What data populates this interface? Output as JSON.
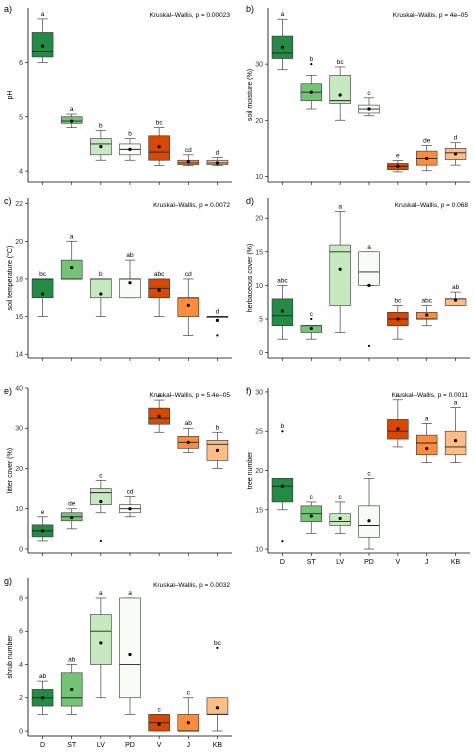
{
  "colors": {
    "D": "#238b45",
    "ST": "#74c476",
    "LV": "#c7e9c0",
    "PD": "#f7fcf5",
    "V": "#d94801",
    "J": "#fd8d3c",
    "KB": "#fdbe85"
  },
  "chart_data": [
    {
      "type": "box",
      "label": "a)",
      "stat": "Kruskal–Wallis, p = 0.00023",
      "ylabel": "pH",
      "ylim": [
        3.8,
        7.0
      ],
      "yticks": [
        4,
        5,
        6
      ],
      "categories": [
        "D",
        "ST",
        "LV",
        "PD",
        "V",
        "J",
        "KB"
      ],
      "show_xlabels": false,
      "boxes": [
        {
          "cat": "D",
          "min": 6.0,
          "q1": 6.1,
          "med": 6.2,
          "q3": 6.55,
          "max": 6.8,
          "mean": 6.3,
          "letter": "a",
          "outliers": []
        },
        {
          "cat": "ST",
          "min": 4.8,
          "q1": 4.88,
          "med": 4.92,
          "q3": 5.0,
          "max": 5.05,
          "mean": 4.92,
          "letter": "a",
          "outliers": []
        },
        {
          "cat": "LV",
          "min": 4.2,
          "q1": 4.3,
          "med": 4.5,
          "q3": 4.6,
          "max": 4.75,
          "mean": 4.45,
          "letter": "b",
          "outliers": []
        },
        {
          "cat": "PD",
          "min": 4.2,
          "q1": 4.3,
          "med": 4.4,
          "q3": 4.5,
          "max": 4.6,
          "mean": 4.4,
          "letter": "b",
          "outliers": []
        },
        {
          "cat": "V",
          "min": 4.1,
          "q1": 4.2,
          "med": 4.35,
          "q3": 4.65,
          "max": 4.8,
          "mean": 4.45,
          "letter": "bc",
          "outliers": []
        },
        {
          "cat": "J",
          "min": 4.1,
          "q1": 4.12,
          "med": 4.15,
          "q3": 4.2,
          "max": 4.3,
          "mean": 4.17,
          "letter": "cd",
          "outliers": []
        },
        {
          "cat": "KB",
          "min": 4.1,
          "q1": 4.12,
          "med": 4.15,
          "q3": 4.2,
          "max": 4.25,
          "mean": 4.15,
          "letter": "d",
          "outliers": []
        }
      ]
    },
    {
      "type": "box",
      "label": "b)",
      "stat": "Kruskal–Wallis, p = 4e–05",
      "ylabel": "soil moisture (%)",
      "ylim": [
        9,
        40
      ],
      "yticks": [
        10,
        20,
        30
      ],
      "categories": [
        "D",
        "ST",
        "LV",
        "PD",
        "V",
        "J",
        "KB"
      ],
      "show_xlabels": false,
      "boxes": [
        {
          "cat": "D",
          "min": 29,
          "q1": 31,
          "med": 32,
          "q3": 35,
          "max": 38,
          "mean": 33,
          "letter": "a",
          "outliers": []
        },
        {
          "cat": "ST",
          "min": 22,
          "q1": 23.5,
          "med": 25,
          "q3": 26.5,
          "max": 28,
          "mean": 25,
          "letter": "b",
          "outliers": [
            30
          ]
        },
        {
          "cat": "LV",
          "min": 20,
          "q1": 23,
          "med": 23.5,
          "q3": 28,
          "max": 29.5,
          "mean": 24.5,
          "letter": "bc",
          "outliers": []
        },
        {
          "cat": "PD",
          "min": 20.8,
          "q1": 21.3,
          "med": 22,
          "q3": 22.7,
          "max": 24,
          "mean": 22,
          "letter": "c",
          "outliers": []
        },
        {
          "cat": "V",
          "min": 10.8,
          "q1": 11.2,
          "med": 11.8,
          "q3": 12.3,
          "max": 12.8,
          "mean": 11.8,
          "letter": "e",
          "outliers": []
        },
        {
          "cat": "J",
          "min": 11,
          "q1": 12,
          "med": 13.2,
          "q3": 14.5,
          "max": 15.5,
          "mean": 13.2,
          "letter": "de",
          "outliers": []
        },
        {
          "cat": "KB",
          "min": 12,
          "q1": 13,
          "med": 14.2,
          "q3": 15,
          "max": 16,
          "mean": 14,
          "letter": "d",
          "outliers": []
        }
      ]
    },
    {
      "type": "box",
      "label": "c)",
      "stat": "Kruskal–Wallis, p = 0.0072",
      "ylabel": "soil temperature (°C)",
      "ylim": [
        13.8,
        22.3
      ],
      "yticks": [
        14,
        16,
        18,
        20,
        22
      ],
      "categories": [
        "D",
        "ST",
        "LV",
        "PD",
        "V",
        "J",
        "KB"
      ],
      "show_xlabels": false,
      "boxes": [
        {
          "cat": "D",
          "min": 16,
          "q1": 17,
          "med": 18,
          "q3": 18,
          "max": 18,
          "mean": 17.2,
          "letter": "bc",
          "outliers": []
        },
        {
          "cat": "ST",
          "min": 18,
          "q1": 18,
          "med": 18,
          "q3": 19,
          "max": 20,
          "mean": 18.6,
          "letter": "a",
          "outliers": []
        },
        {
          "cat": "LV",
          "min": 16,
          "q1": 17,
          "med": 18,
          "q3": 18,
          "max": 18,
          "mean": 17.2,
          "letter": "b",
          "outliers": []
        },
        {
          "cat": "PD",
          "min": 17,
          "q1": 17,
          "med": 18,
          "q3": 18,
          "max": 19,
          "mean": 17.8,
          "letter": "ab",
          "outliers": []
        },
        {
          "cat": "V",
          "min": 16,
          "q1": 17,
          "med": 17.5,
          "q3": 18,
          "max": 18,
          "mean": 17.4,
          "letter": "abc",
          "outliers": []
        },
        {
          "cat": "J",
          "min": 15,
          "q1": 16,
          "med": 17,
          "q3": 17,
          "max": 18,
          "mean": 16.6,
          "letter": "cd",
          "outliers": []
        },
        {
          "cat": "KB",
          "min": 16,
          "q1": 16,
          "med": 16,
          "q3": 16,
          "max": 16,
          "mean": 15.8,
          "letter": "d",
          "outliers": [
            15
          ]
        }
      ]
    },
    {
      "type": "box",
      "label": "d)",
      "stat": "Kruskal–Wallis, p = 0.068",
      "ylabel": "herbaceous cover (%)",
      "ylim": [
        -0.8,
        23
      ],
      "yticks": [
        0,
        5,
        10,
        15,
        20
      ],
      "categories": [
        "D",
        "ST",
        "LV",
        "PD",
        "V",
        "J",
        "KB"
      ],
      "show_xlabels": false,
      "boxes": [
        {
          "cat": "D",
          "min": 2,
          "q1": 4,
          "med": 5.5,
          "q3": 8,
          "max": 10,
          "mean": 6.2,
          "letter": "abc",
          "outliers": []
        },
        {
          "cat": "ST",
          "min": 2,
          "q1": 3,
          "med": 4,
          "q3": 4,
          "max": 4,
          "mean": 3.6,
          "letter": "c",
          "outliers": [
            5
          ]
        },
        {
          "cat": "LV",
          "min": 3,
          "q1": 7,
          "med": 15,
          "q3": 16,
          "max": 21,
          "mean": 12.4,
          "letter": "a",
          "outliers": []
        },
        {
          "cat": "PD",
          "min": 10,
          "q1": 10,
          "med": 12,
          "q3": 15,
          "max": 15,
          "mean": 10,
          "letter": "a",
          "outliers": [
            1
          ]
        },
        {
          "cat": "V",
          "min": 2,
          "q1": 4,
          "med": 5,
          "q3": 6,
          "max": 7,
          "mean": 5,
          "letter": "bc",
          "outliers": []
        },
        {
          "cat": "J",
          "min": 4,
          "q1": 5,
          "med": 5,
          "q3": 6,
          "max": 7,
          "mean": 5.6,
          "letter": "abc",
          "outliers": []
        },
        {
          "cat": "KB",
          "min": 7,
          "q1": 7,
          "med": 8,
          "q3": 8,
          "max": 9,
          "mean": 7.8,
          "letter": "ab",
          "outliers": []
        }
      ]
    },
    {
      "type": "box",
      "label": "e)",
      "stat": "Kruskal–Wallis, p = 5.4e–05",
      "ylabel": "litter cover (%)",
      "ylim": [
        -1,
        40
      ],
      "yticks": [
        0,
        10,
        20,
        30,
        40
      ],
      "categories": [
        "D",
        "ST",
        "LV",
        "PD",
        "V",
        "J",
        "KB"
      ],
      "show_xlabels": false,
      "boxes": [
        {
          "cat": "D",
          "min": 2,
          "q1": 3,
          "med": 4.5,
          "q3": 6,
          "max": 8,
          "mean": 4.5,
          "letter": "e",
          "outliers": []
        },
        {
          "cat": "ST",
          "min": 5,
          "q1": 7,
          "med": 8,
          "q3": 9,
          "max": 10,
          "mean": 7.8,
          "letter": "de",
          "outliers": []
        },
        {
          "cat": "LV",
          "min": 9,
          "q1": 11,
          "med": 14,
          "q3": 15,
          "max": 17,
          "mean": 11.8,
          "letter": "c",
          "outliers": [
            2
          ]
        },
        {
          "cat": "PD",
          "min": 8,
          "q1": 9,
          "med": 10,
          "q3": 11,
          "max": 13,
          "mean": 10,
          "letter": "cd",
          "outliers": []
        },
        {
          "cat": "V",
          "min": 29,
          "q1": 31,
          "med": 32.5,
          "q3": 35,
          "max": 37,
          "mean": 33,
          "letter": "a",
          "outliers": []
        },
        {
          "cat": "J",
          "min": 24,
          "q1": 25,
          "med": 26.5,
          "q3": 28,
          "max": 30,
          "mean": 26.5,
          "letter": "ab",
          "outliers": []
        },
        {
          "cat": "KB",
          "min": 20,
          "q1": 22,
          "med": 26,
          "q3": 27,
          "max": 29,
          "mean": 24.5,
          "letter": "b",
          "outliers": []
        }
      ]
    },
    {
      "type": "box",
      "label": "f)",
      "stat": "Kruskal–Wallis, p = 0.0011",
      "ylabel": "tree number",
      "ylim": [
        9.5,
        30.5
      ],
      "yticks": [
        10,
        15,
        20,
        25,
        30
      ],
      "categories": [
        "D",
        "ST",
        "LV",
        "PD",
        "V",
        "J",
        "KB"
      ],
      "show_xlabels": true,
      "boxes": [
        {
          "cat": "D",
          "min": 15,
          "q1": 16,
          "med": 18,
          "q3": 19,
          "max": 19,
          "mean": 18,
          "letter": "b",
          "outliers": [
            11,
            25
          ]
        },
        {
          "cat": "ST",
          "min": 12,
          "q1": 13.5,
          "med": 14.5,
          "q3": 15.5,
          "max": 16,
          "mean": 14.2,
          "letter": "c",
          "outliers": []
        },
        {
          "cat": "LV",
          "min": 12,
          "q1": 13,
          "med": 13.5,
          "q3": 14.5,
          "max": 16,
          "mean": 13.9,
          "letter": "c",
          "outliers": []
        },
        {
          "cat": "PD",
          "min": 10,
          "q1": 11.5,
          "med": 13,
          "q3": 15.5,
          "max": 19,
          "mean": 13.6,
          "letter": "c",
          "outliers": []
        },
        {
          "cat": "V",
          "min": 23,
          "q1": 24,
          "med": 25,
          "q3": 26.5,
          "max": 29,
          "mean": 25.3,
          "letter": "a",
          "outliers": []
        },
        {
          "cat": "J",
          "min": 21,
          "q1": 22,
          "med": 23.5,
          "q3": 24.5,
          "max": 26,
          "mean": 22.8,
          "letter": "a",
          "outliers": []
        },
        {
          "cat": "KB",
          "min": 21,
          "q1": 22,
          "med": 23,
          "q3": 25,
          "max": 28,
          "mean": 23.8,
          "letter": "a",
          "outliers": []
        }
      ]
    },
    {
      "type": "box",
      "label": "g)",
      "stat": "Kruskal–Wallis, p = 0.0032",
      "ylabel": "shrub number",
      "ylim": [
        -0.3,
        9.2
      ],
      "yticks": [
        0,
        2,
        4,
        6,
        8
      ],
      "categories": [
        "D",
        "ST",
        "LV",
        "PD",
        "V",
        "J",
        "KB"
      ],
      "show_xlabels": true,
      "boxes": [
        {
          "cat": "D",
          "min": 1,
          "q1": 1.5,
          "med": 2,
          "q3": 2.5,
          "max": 3,
          "mean": 2,
          "letter": "ab",
          "outliers": []
        },
        {
          "cat": "ST",
          "min": 1,
          "q1": 1.5,
          "med": 2,
          "q3": 3.5,
          "max": 4,
          "mean": 2.5,
          "letter": "ab",
          "outliers": []
        },
        {
          "cat": "LV",
          "min": 2,
          "q1": 4,
          "med": 6,
          "q3": 7,
          "max": 8,
          "mean": 5.3,
          "letter": "a",
          "outliers": []
        },
        {
          "cat": "PD",
          "min": 1,
          "q1": 2,
          "med": 4,
          "q3": 8,
          "max": 8,
          "mean": 4.6,
          "letter": "a",
          "outliers": []
        },
        {
          "cat": "V",
          "min": 0,
          "q1": 0,
          "med": 0.5,
          "q3": 1,
          "max": 1,
          "mean": 0.4,
          "letter": "c",
          "outliers": []
        },
        {
          "cat": "J",
          "min": 0,
          "q1": 0,
          "med": 0,
          "q3": 1,
          "max": 2,
          "mean": 0.5,
          "letter": "c",
          "outliers": []
        },
        {
          "cat": "KB",
          "min": 0,
          "q1": 1,
          "med": 1,
          "q3": 2,
          "max": 2,
          "mean": 1.4,
          "letter": "bc",
          "outliers": [
            5
          ]
        }
      ]
    }
  ]
}
